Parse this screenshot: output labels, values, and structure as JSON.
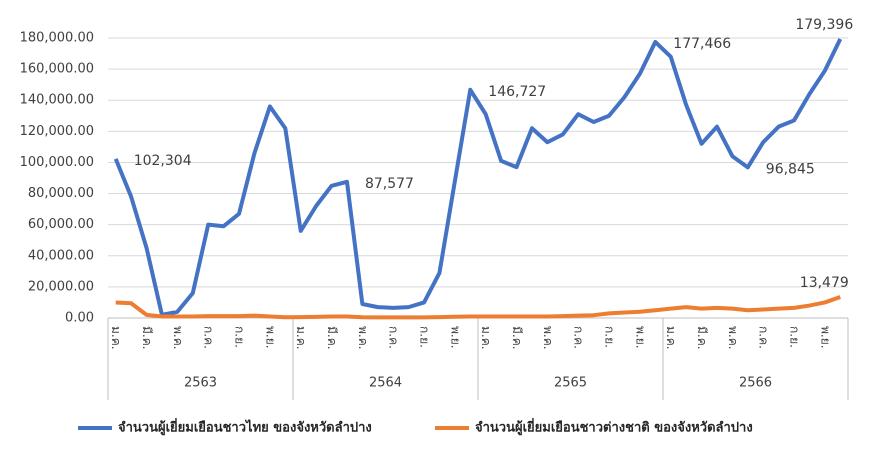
{
  "chart_data": {
    "type": "line",
    "categories": [
      "ม.ค.",
      null,
      "มี.ค.",
      null,
      "พ.ค.",
      null,
      "ก.ค.",
      null,
      "ก.ย.",
      null,
      "พ.ย.",
      null,
      "ม.ค.",
      null,
      "มี.ค.",
      null,
      "พ.ค.",
      null,
      "ก.ค.",
      null,
      "ก.ย.",
      null,
      "พ.ย.",
      null,
      "ม.ค.",
      null,
      "มี.ค.",
      null,
      "พ.ค.",
      null,
      "ก.ค.",
      null,
      "ก.ย.",
      null,
      "พ.ย.",
      null,
      "ม.ค.",
      null,
      "มี.ค.",
      null,
      "พ.ค.",
      null,
      "ก.ค.",
      null,
      "ก.ย.",
      null,
      "พ.ย.",
      null
    ],
    "groups": [
      "2563",
      "2564",
      "2565",
      "2566"
    ],
    "series": [
      {
        "name": "จำนวนผู้เยี่ยมเยือนชาวไทย ของจังหวัดลำปาง",
        "color": "#4472c4",
        "values": [
          102304,
          78000,
          45000,
          2000,
          4000,
          16000,
          60000,
          59000,
          67000,
          106000,
          136000,
          122000,
          56000,
          72000,
          85000,
          87577,
          9000,
          7000,
          6500,
          7000,
          10000,
          29000,
          88000,
          146727,
          131000,
          101000,
          97000,
          122000,
          113000,
          118000,
          131000,
          126000,
          130000,
          142000,
          157000,
          177466,
          168000,
          137000,
          112000,
          123000,
          104000,
          96845,
          113000,
          123000,
          127000,
          144000,
          159000,
          179396
        ],
        "value_labels": [
          "102,304",
          null,
          null,
          null,
          null,
          null,
          null,
          null,
          null,
          null,
          null,
          null,
          null,
          null,
          null,
          "87,577",
          null,
          null,
          null,
          null,
          null,
          null,
          null,
          "146,727",
          null,
          null,
          null,
          null,
          null,
          null,
          null,
          null,
          null,
          null,
          null,
          "177,466",
          null,
          null,
          null,
          null,
          null,
          "96,845",
          null,
          null,
          null,
          null,
          null,
          "179,396"
        ]
      },
      {
        "name": "จำนวนผู้เยี่ยมเยือนชาวต่างชาติ ของจังหวัดลำปาง",
        "color": "#ed7d31",
        "values": [
          10000,
          9500,
          2000,
          1000,
          1000,
          1000,
          1200,
          1200,
          1200,
          1500,
          1000,
          500,
          600,
          700,
          1000,
          1000,
          500,
          400,
          400,
          400,
          400,
          600,
          800,
          1000,
          1000,
          1000,
          1000,
          1000,
          1000,
          1200,
          1500,
          1800,
          3000,
          3500,
          4000,
          5000,
          6000,
          7000,
          6000,
          6500,
          6000,
          5000,
          5500,
          6000,
          6500,
          8000,
          10000,
          13479
        ],
        "value_labels": [
          null,
          null,
          null,
          null,
          null,
          null,
          null,
          null,
          null,
          null,
          null,
          null,
          null,
          null,
          null,
          null,
          null,
          null,
          null,
          null,
          null,
          null,
          null,
          null,
          null,
          null,
          null,
          null,
          null,
          null,
          null,
          null,
          null,
          null,
          null,
          null,
          null,
          null,
          null,
          null,
          null,
          null,
          null,
          null,
          null,
          null,
          null,
          "13,479"
        ]
      }
    ],
    "ylim": [
      0,
      180000
    ],
    "yticks": [
      {
        "value": 0,
        "label": "0.00"
      },
      {
        "value": 20000,
        "label": "20,000.00"
      },
      {
        "value": 40000,
        "label": "40,000.00"
      },
      {
        "value": 60000,
        "label": "60,000.00"
      },
      {
        "value": 80000,
        "label": "80,000.00"
      },
      {
        "value": 100000,
        "label": "100,000.00"
      },
      {
        "value": 120000,
        "label": "120,000.00"
      },
      {
        "value": 140000,
        "label": "140,000.00"
      },
      {
        "value": 160000,
        "label": "160,000.00"
      },
      {
        "value": 180000,
        "label": "180,000.00"
      }
    ],
    "grid": true,
    "legend": "bottom"
  }
}
